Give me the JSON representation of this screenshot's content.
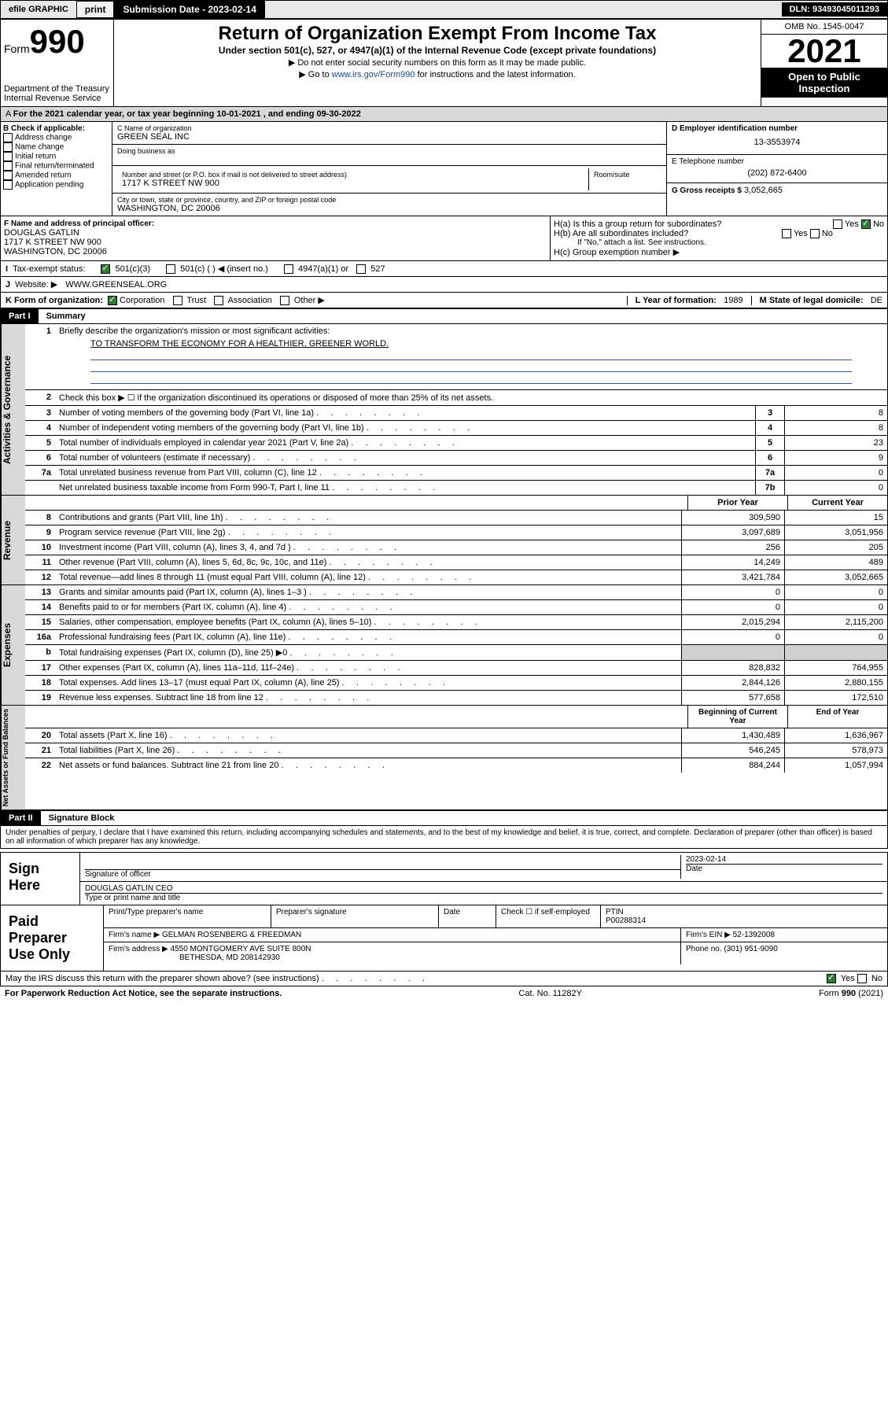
{
  "topbar": {
    "efile": "efile GRAPHIC",
    "print": "print",
    "sub_label": "Submission Date - 2023-02-14",
    "dln": "DLN: 93493045011293"
  },
  "header": {
    "form": "Form",
    "num": "990",
    "dept": "Department of the Treasury Internal Revenue Service",
    "title": "Return of Organization Exempt From Income Tax",
    "sub": "Under section 501(c), 527, or 4947(a)(1) of the Internal Revenue Code (except private foundations)",
    "line1": "▶ Do not enter social security numbers on this form as it may be made public.",
    "line2_pre": "▶ Go to ",
    "line2_link": "www.irs.gov/Form990",
    "line2_post": " for instructions and the latest information.",
    "omb": "OMB No. 1545-0047",
    "year": "2021",
    "inspect": "Open to Public Inspection"
  },
  "a_line": "For the 2021 calendar year, or tax year beginning 10-01-2021    , and ending 09-30-2022",
  "box_b": {
    "title": "B Check if applicable:",
    "items": [
      "Address change",
      "Name change",
      "Initial return",
      "Final return/terminated",
      "Amended return",
      "Application pending"
    ]
  },
  "box_c": {
    "name_lbl": "C Name of organization",
    "name": "GREEN SEAL INC",
    "dba_lbl": "Doing business as",
    "addr_lbl": "Number and street (or P.O. box if mail is not delivered to street address)",
    "room_lbl": "Room/suite",
    "addr": "1717 K STREET NW 900",
    "city_lbl": "City or town, state or province, country, and ZIP or foreign postal code",
    "city": "WASHINGTON, DC  20006"
  },
  "box_d": {
    "lbl": "D Employer identification number",
    "val": "13-3553974"
  },
  "box_e": {
    "lbl": "E Telephone number",
    "val": "(202) 872-6400"
  },
  "box_g": {
    "lbl": "G Gross receipts $",
    "val": "3,052,665"
  },
  "box_f": {
    "lbl": "F  Name and address of principal officer:",
    "name": "DOUGLAS GATLIN",
    "addr1": "1717 K STREET NW 900",
    "addr2": "WASHINGTON, DC  20006"
  },
  "box_h": {
    "a": "H(a)  Is this a group return for subordinates?",
    "b": "H(b)  Are all subordinates included?",
    "note": "If \"No,\" attach a list. See instructions.",
    "c": "H(c)  Group exemption number ▶",
    "yes": "Yes",
    "no": "No"
  },
  "tax_status": {
    "lbl": "Tax-exempt status:",
    "o1": "501(c)(3)",
    "o2": "501(c) (   ) ◀ (insert no.)",
    "o3": "4947(a)(1) or",
    "o4": "527"
  },
  "website": {
    "lbl": "Website: ▶",
    "val": "WWW.GREENSEAL.ORG"
  },
  "box_k": {
    "lbl": "K Form of organization:",
    "corp": "Corporation",
    "trust": "Trust",
    "assoc": "Association",
    "other": "Other ▶"
  },
  "box_l": {
    "lbl": "L Year of formation:",
    "val": "1989"
  },
  "box_m": {
    "lbl": "M State of legal domicile:",
    "val": "DE"
  },
  "part1": {
    "num": "Part I",
    "title": "Summary"
  },
  "summary": {
    "q1": "Briefly describe the organization's mission or most significant activities:",
    "mission": "TO TRANSFORM THE ECONOMY FOR A HEALTHIER, GREENER WORLD.",
    "q2": "Check this box ▶ ☐  if the organization discontinued its operations or disposed of more than 25% of its net assets.",
    "rows": [
      {
        "n": "3",
        "t": "Number of voting members of the governing body (Part VI, line 1a)",
        "box": "3",
        "val": "8"
      },
      {
        "n": "4",
        "t": "Number of independent voting members of the governing body (Part VI, line 1b)",
        "box": "4",
        "val": "8"
      },
      {
        "n": "5",
        "t": "Total number of individuals employed in calendar year 2021 (Part V, line 2a)",
        "box": "5",
        "val": "23"
      },
      {
        "n": "6",
        "t": "Total number of volunteers (estimate if necessary)",
        "box": "6",
        "val": "9"
      },
      {
        "n": "7a",
        "t": "Total unrelated business revenue from Part VIII, column (C), line 12",
        "box": "7a",
        "val": "0"
      },
      {
        "n": "",
        "t": "Net unrelated business taxable income from Form 990-T, Part I, line 11",
        "box": "7b",
        "val": "0"
      }
    ]
  },
  "cols": {
    "prior": "Prior Year",
    "current": "Current Year",
    "boy": "Beginning of Current Year",
    "eoy": "End of Year"
  },
  "revenue": [
    {
      "n": "8",
      "t": "Contributions and grants (Part VIII, line 1h)",
      "p": "309,590",
      "c": "15"
    },
    {
      "n": "9",
      "t": "Program service revenue (Part VIII, line 2g)",
      "p": "3,097,689",
      "c": "3,051,956"
    },
    {
      "n": "10",
      "t": "Investment income (Part VIII, column (A), lines 3, 4, and 7d )",
      "p": "256",
      "c": "205"
    },
    {
      "n": "11",
      "t": "Other revenue (Part VIII, column (A), lines 5, 6d, 8c, 9c, 10c, and 11e)",
      "p": "14,249",
      "c": "489"
    },
    {
      "n": "12",
      "t": "Total revenue—add lines 8 through 11 (must equal Part VIII, column (A), line 12)",
      "p": "3,421,784",
      "c": "3,052,665"
    }
  ],
  "expenses": [
    {
      "n": "13",
      "t": "Grants and similar amounts paid (Part IX, column (A), lines 1–3 )",
      "p": "0",
      "c": "0"
    },
    {
      "n": "14",
      "t": "Benefits paid to or for members (Part IX, column (A), line 4)",
      "p": "0",
      "c": "0"
    },
    {
      "n": "15",
      "t": "Salaries, other compensation, employee benefits (Part IX, column (A), lines 5–10)",
      "p": "2,015,294",
      "c": "2,115,200"
    },
    {
      "n": "16a",
      "t": "Professional fundraising fees (Part IX, column (A), line 11e)",
      "p": "0",
      "c": "0"
    },
    {
      "n": "b",
      "t": "Total fundraising expenses (Part IX, column (D), line 25) ▶0",
      "p": "",
      "c": "",
      "grey": true
    },
    {
      "n": "17",
      "t": "Other expenses (Part IX, column (A), lines 11a–11d, 11f–24e)",
      "p": "828,832",
      "c": "764,955"
    },
    {
      "n": "18",
      "t": "Total expenses. Add lines 13–17 (must equal Part IX, column (A), line 25)",
      "p": "2,844,126",
      "c": "2,880,155"
    },
    {
      "n": "19",
      "t": "Revenue less expenses. Subtract line 18 from line 12",
      "p": "577,658",
      "c": "172,510"
    }
  ],
  "netassets": [
    {
      "n": "20",
      "t": "Total assets (Part X, line 16)",
      "p": "1,430,489",
      "c": "1,636,967"
    },
    {
      "n": "21",
      "t": "Total liabilities (Part X, line 26)",
      "p": "546,245",
      "c": "578,973"
    },
    {
      "n": "22",
      "t": "Net assets or fund balances. Subtract line 21 from line 20",
      "p": "884,244",
      "c": "1,057,994"
    }
  ],
  "vlabels": {
    "gov": "Activities & Governance",
    "rev": "Revenue",
    "exp": "Expenses",
    "net": "Net Assets or Fund Balances"
  },
  "part2": {
    "num": "Part II",
    "title": "Signature Block"
  },
  "sig": {
    "decl": "Under penalties of perjury, I declare that I have examined this return, including accompanying schedules and statements, and to the best of my knowledge and belief, it is true, correct, and complete. Declaration of preparer (other than officer) is based on all information of which preparer has any knowledge.",
    "here": "Sign Here",
    "sig_lbl": "Signature of officer",
    "date_lbl": "Date",
    "date": "2023-02-14",
    "name": "DOUGLAS GATLIN CEO",
    "name_lbl": "Type or print name and title"
  },
  "paid": {
    "title": "Paid Preparer Use Only",
    "h1": "Print/Type preparer's name",
    "h2": "Preparer's signature",
    "h3": "Date",
    "h4_pre": "Check ☐ if self-employed",
    "h5": "PTIN",
    "ptin": "P00288314",
    "firm_lbl": "Firm's name    ▶",
    "firm": "GELMAN ROSENBERG & FREEDMAN",
    "ein_lbl": "Firm's EIN ▶",
    "ein": "52-1392008",
    "addr_lbl": "Firm's address ▶",
    "addr1": "4550 MONTGOMERY AVE SUITE 800N",
    "addr2": "BETHESDA, MD  208142930",
    "phone_lbl": "Phone no.",
    "phone": "(301) 951-9090"
  },
  "discuss": {
    "q": "May the IRS discuss this return with the preparer shown above? (see instructions)",
    "yes": "Yes",
    "no": "No"
  },
  "footer": {
    "left": "For Paperwork Reduction Act Notice, see the separate instructions.",
    "mid": "Cat. No. 11282Y",
    "right": "Form 990 (2021)"
  }
}
